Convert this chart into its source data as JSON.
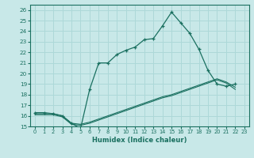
{
  "xlabel": "Humidex (Indice chaleur)",
  "bg_color": "#c8e8e8",
  "line_color": "#1a7060",
  "grid_color": "#add8d8",
  "xlim": [
    -0.5,
    23.5
  ],
  "ylim": [
    15.0,
    26.5
  ],
  "yticks": [
    15,
    16,
    17,
    18,
    19,
    20,
    21,
    22,
    23,
    24,
    25,
    26
  ],
  "xticks": [
    0,
    1,
    2,
    3,
    4,
    5,
    6,
    7,
    8,
    9,
    10,
    11,
    12,
    13,
    14,
    15,
    16,
    17,
    18,
    19,
    20,
    21,
    22,
    23
  ],
  "line1_x": [
    0,
    1,
    2,
    3,
    4,
    5,
    6,
    7,
    8,
    9,
    10,
    11,
    12,
    13,
    14,
    15,
    16,
    17,
    18,
    19,
    20,
    21,
    22
  ],
  "line1_y": [
    16.3,
    16.3,
    16.2,
    16.0,
    15.3,
    14.8,
    18.5,
    21.0,
    21.0,
    21.8,
    22.2,
    22.5,
    23.2,
    23.3,
    24.5,
    25.8,
    24.8,
    23.8,
    22.3,
    20.3,
    19.0,
    18.8,
    19.0
  ],
  "line2_x": [
    0,
    1,
    2,
    3,
    4,
    5,
    6,
    7,
    8,
    9,
    10,
    11,
    12,
    13,
    14,
    15,
    16,
    17,
    18,
    19,
    20,
    21,
    22
  ],
  "line2_y": [
    16.2,
    16.2,
    16.2,
    16.0,
    15.3,
    15.2,
    15.4,
    15.7,
    16.0,
    16.3,
    16.6,
    16.9,
    17.2,
    17.5,
    17.8,
    18.0,
    18.3,
    18.6,
    18.9,
    19.2,
    19.5,
    19.2,
    18.7
  ],
  "line3_x": [
    0,
    1,
    2,
    3,
    4,
    5,
    6,
    7,
    8,
    9,
    10,
    11,
    12,
    13,
    14,
    15,
    16,
    17,
    18,
    19,
    20,
    21,
    22
  ],
  "line3_y": [
    16.1,
    16.1,
    16.1,
    15.9,
    15.2,
    15.1,
    15.3,
    15.6,
    15.9,
    16.2,
    16.5,
    16.8,
    17.1,
    17.4,
    17.7,
    17.9,
    18.2,
    18.5,
    18.8,
    19.1,
    19.4,
    19.1,
    18.5
  ]
}
